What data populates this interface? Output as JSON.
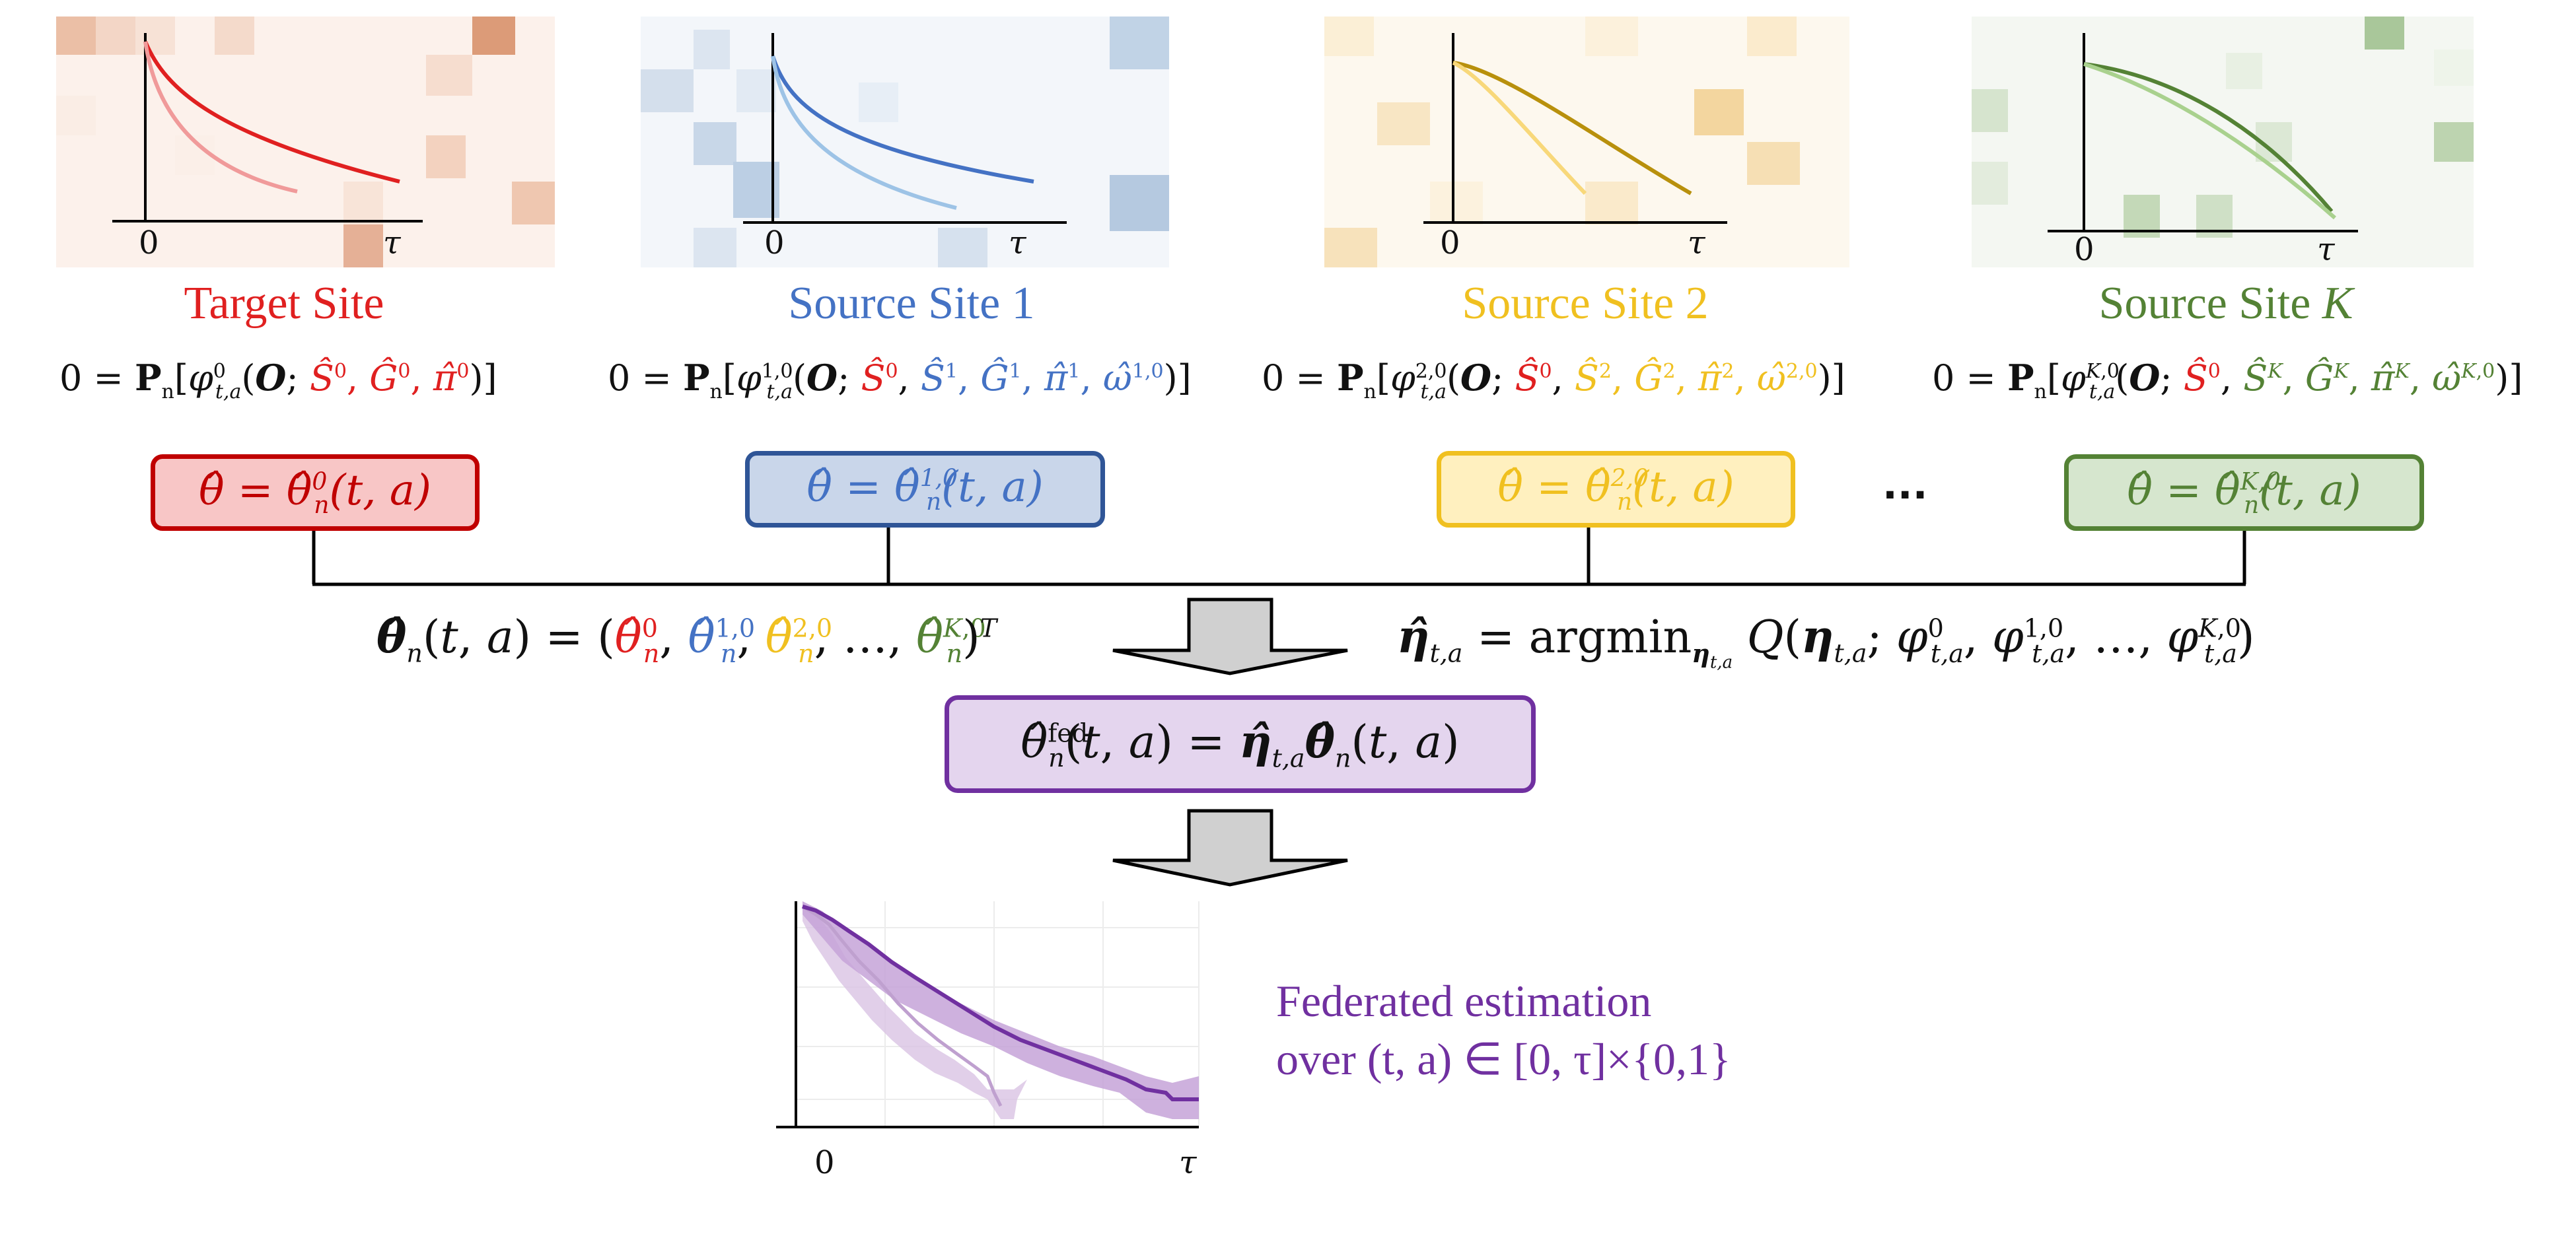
{
  "colors": {
    "target": "#E02020",
    "source1": "#4472C4",
    "source2": "#F0C020",
    "sourceK": "#548235",
    "federated": "#7030A0",
    "arrow_fill": "#D0D0D0"
  },
  "sites": [
    {
      "title": "Target Site",
      "axis_zero": "0",
      "axis_tau": "τ",
      "equation_lead": "0 = ",
      "estimator": "θ̂ = θ̂ⁿ⁰(t, a)"
    },
    {
      "title": "Source Site 1",
      "axis_zero": "0",
      "axis_tau": "τ",
      "equation_lead": "0 = ",
      "estimator": "θ̂ = θ̂ⁿ¹˒⁰(t, a)"
    },
    {
      "title": "Source Site 2",
      "axis_zero": "0",
      "axis_tau": "τ",
      "equation_lead": "0 = ",
      "estimator": "θ̂ = θ̂ⁿ²˒⁰(t, a)"
    },
    {
      "title_prefix": "Source Site ",
      "title_k": "K",
      "axis_zero": "0",
      "axis_tau": "τ",
      "equation_lead": "0 = ",
      "estimator": "θ̂ = θ̂ⁿᴷ˒⁰(t, a)"
    }
  ],
  "ellipsis": "...",
  "stacked_vector_label": "θ̂ₙ(t, a) = (θ̂ₙ⁰, θ̂ₙ¹˒⁰, θ̂ₙ²˒⁰, …, θ̂ₙᴷ˒⁰)ᵀ",
  "weight_label": "η̂ₜ,ₐ = argmin Q(ηₜ,ₐ; φ⁰ₜ,ₐ, φ¹˒⁰ₜ,ₐ, …, φᴷ˒⁰ₜ,ₐ)",
  "federated_label": "θ̂ₙᶠᵉᵈ(t, a) = η̂ₜ,ₐ θ̂ₙ(t, a)",
  "result": {
    "caption_line1": "Federated estimation",
    "caption_line2": "over (t, a) ∈ [0, τ]×{0,1}",
    "axis_zero": "0",
    "axis_tau": "τ"
  }
}
